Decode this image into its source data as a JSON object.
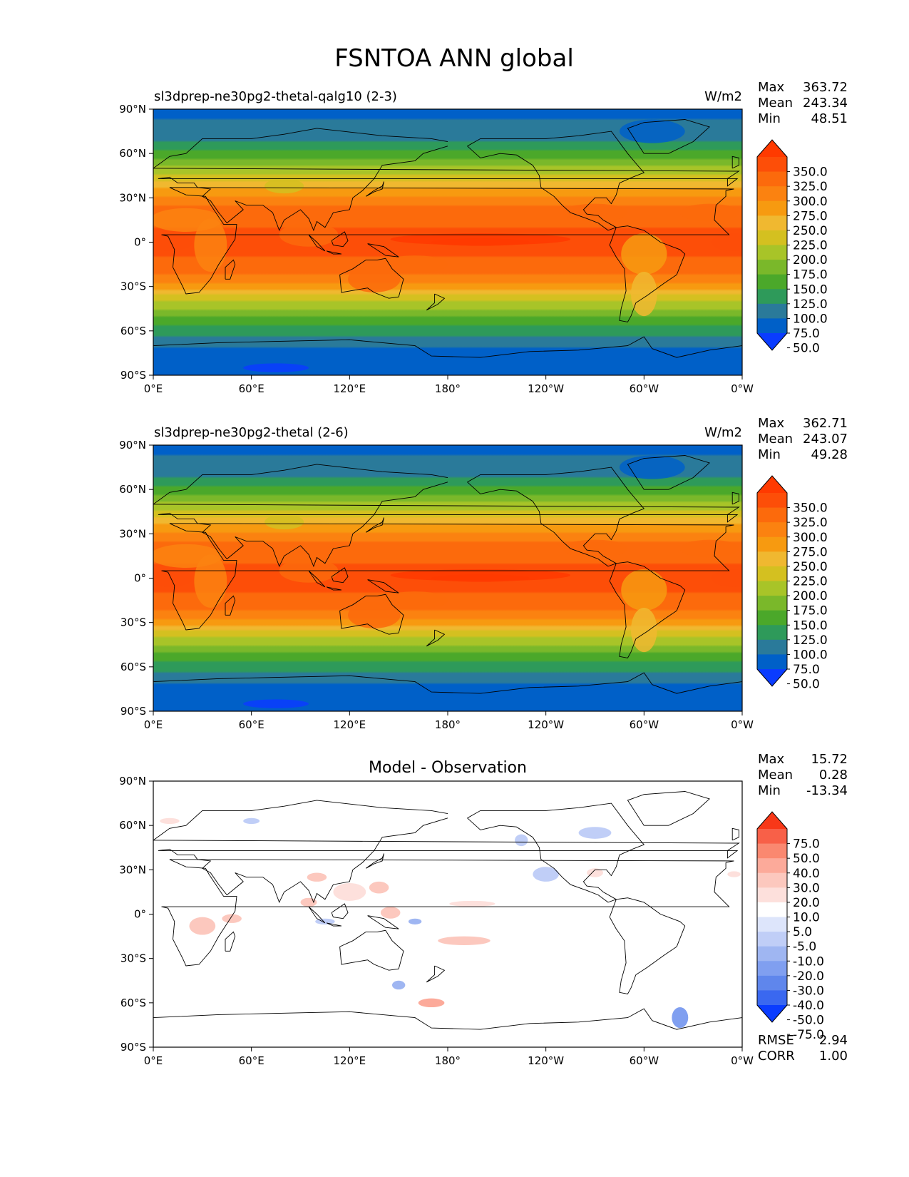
{
  "figure_title": "FSNTOA ANN global",
  "colors": {
    "cmap_main": [
      "#0a3cff",
      "#0060c8",
      "#2a7a9a",
      "#2e9a5a",
      "#4ba82a",
      "#7ab82a",
      "#a8c428",
      "#d4c020",
      "#f0b830",
      "#f79a10",
      "#fb8210",
      "#fc6a0c",
      "#fd4e08",
      "#ff3a00"
    ],
    "cmap_diff": [
      "#0a3cff",
      "#3a68f0",
      "#5f86ec",
      "#809ff0",
      "#9fb6f2",
      "#c0cef7",
      "#dde5fb",
      "#ffffff",
      "#fde0dc",
      "#fcc8be",
      "#fcaa9a",
      "#fa8870",
      "#f86048",
      "#f83818"
    ],
    "coastline": "#000000"
  },
  "panels": [
    {
      "name": "test",
      "title_left": "sl3dprep-ne30pg2-thetal-qalg10 (2-3)",
      "units": "W/m2",
      "stats": {
        "labels": [
          "Max",
          "Mean",
          "Min"
        ],
        "values": [
          "363.72",
          "243.34",
          "48.51"
        ]
      },
      "colorbar_ticks": [
        "350.0",
        "325.0",
        "300.0",
        "275.0",
        "250.0",
        "225.0",
        "200.0",
        "175.0",
        "150.0",
        "125.0",
        "100.0",
        "75.0",
        "50.0"
      ]
    },
    {
      "name": "reference",
      "title_left": "sl3dprep-ne30pg2-thetal (2-6)",
      "units": "W/m2",
      "stats": {
        "labels": [
          "Max",
          "Mean",
          "Min"
        ],
        "values": [
          "362.71",
          "243.07",
          "49.28"
        ]
      },
      "colorbar_ticks": [
        "350.0",
        "325.0",
        "300.0",
        "275.0",
        "250.0",
        "225.0",
        "200.0",
        "175.0",
        "150.0",
        "125.0",
        "100.0",
        "75.0",
        "50.0"
      ]
    },
    {
      "name": "difference",
      "title_center": "Model - Observation",
      "stats": {
        "labels": [
          "Max",
          "Mean",
          "Min"
        ],
        "values": [
          "15.72",
          "0.28",
          "-13.34"
        ]
      },
      "colorbar_ticks": [
        "75.0",
        "50.0",
        "40.0",
        "30.0",
        "20.0",
        "10.0",
        "5.0",
        "-5.0",
        "-10.0",
        "-20.0",
        "-30.0",
        "-40.0",
        "-50.0",
        "-75.0"
      ],
      "bottom_stats": {
        "labels": [
          "RMSE",
          "CORR"
        ],
        "values": [
          "2.94",
          "1.00"
        ]
      }
    }
  ],
  "axes": {
    "lat_ticks": [
      "90°N",
      "60°N",
      "30°N",
      "0°",
      "30°S",
      "60°S",
      "90°S"
    ],
    "lon_ticks": [
      "0°E",
      "60°E",
      "120°E",
      "180°",
      "120°W",
      "60°W",
      "0°W"
    ]
  },
  "chart_data": [
    {
      "type": "heatmap",
      "title": "sl3dprep-ne30pg2-thetal-qalg10 (2-3)",
      "units": "W/m2",
      "xlim": [
        0,
        360
      ],
      "ylim": [
        -90,
        90
      ],
      "levels": [
        50,
        75,
        100,
        125,
        150,
        175,
        200,
        225,
        250,
        275,
        300,
        325,
        350
      ],
      "extend": "both",
      "zonal_mean_profile": {
        "lat": [
          -90,
          -75,
          -65,
          -55,
          -45,
          -35,
          -25,
          -15,
          -5,
          5,
          15,
          25,
          35,
          45,
          55,
          65,
          75,
          90
        ],
        "value": [
          50,
          65,
          95,
          130,
          175,
          230,
          290,
          320,
          330,
          330,
          320,
          300,
          260,
          205,
          155,
          110,
          80,
          70
        ]
      },
      "max": 363.72,
      "mean": 243.34,
      "min": 48.51
    },
    {
      "type": "heatmap",
      "title": "sl3dprep-ne30pg2-thetal (2-6)",
      "units": "W/m2",
      "xlim": [
        0,
        360
      ],
      "ylim": [
        -90,
        90
      ],
      "levels": [
        50,
        75,
        100,
        125,
        150,
        175,
        200,
        225,
        250,
        275,
        300,
        325,
        350
      ],
      "extend": "both",
      "zonal_mean_profile": {
        "lat": [
          -90,
          -75,
          -65,
          -55,
          -45,
          -35,
          -25,
          -15,
          -5,
          5,
          15,
          25,
          35,
          45,
          55,
          65,
          75,
          90
        ],
        "value": [
          55,
          66,
          96,
          130,
          175,
          230,
          290,
          320,
          330,
          330,
          320,
          300,
          260,
          205,
          155,
          110,
          80,
          70
        ]
      },
      "max": 362.71,
      "mean": 243.07,
      "min": 49.28
    },
    {
      "type": "heatmap",
      "title": "Model - Observation",
      "xlim": [
        0,
        360
      ],
      "ylim": [
        -90,
        90
      ],
      "levels": [
        -75,
        -50,
        -40,
        -30,
        -20,
        -10,
        -5,
        5,
        10,
        20,
        30,
        40,
        50,
        75
      ],
      "extend": "both",
      "max": 15.72,
      "mean": 0.28,
      "min": -13.34,
      "rmse": 2.94,
      "corr": 1.0
    }
  ]
}
